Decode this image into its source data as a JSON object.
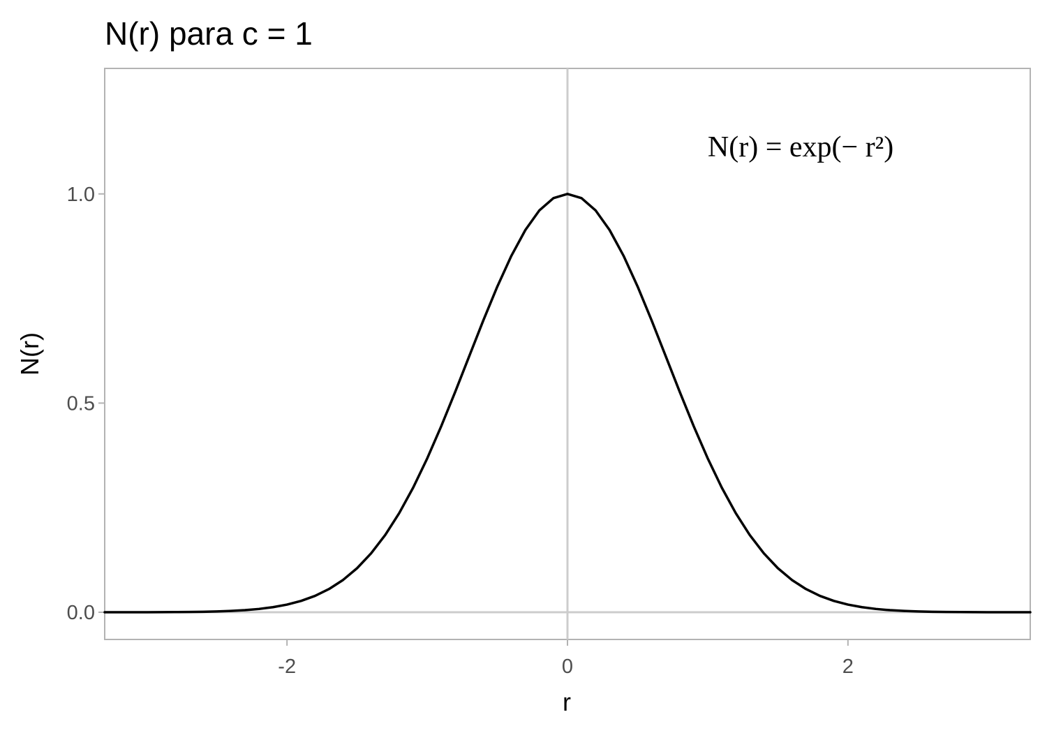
{
  "chart_data": {
    "type": "line",
    "title": "N(r) para c = 1",
    "xlabel": "r",
    "ylabel": "N(r)",
    "xlim": [
      -3.3,
      3.3
    ],
    "ylim": [
      -0.065,
      1.3
    ],
    "x_ticks": [
      {
        "value": -2,
        "label": "-2"
      },
      {
        "value": 0,
        "label": "0"
      },
      {
        "value": 2,
        "label": "2"
      }
    ],
    "y_ticks": [
      {
        "value": 0.0,
        "label": "0.0"
      },
      {
        "value": 0.5,
        "label": "0.5"
      },
      {
        "value": 1.0,
        "label": "1.0"
      }
    ],
    "reference_lines": {
      "vertical_x": 0,
      "horizontal_y": 0
    },
    "grid": false,
    "legend": "none",
    "colors": {
      "curve": "#000000",
      "reference_lines": "#cccccc",
      "panel_border": "#b3b3b3",
      "tick_text": "#4d4d4d"
    },
    "annotation": {
      "x": 1.0,
      "y": 1.09,
      "text": "N(r) = exp(− r²)"
    },
    "series": [
      {
        "x": [
          -3.3,
          -3.2,
          -3.1,
          -3.0,
          -2.9,
          -2.8,
          -2.7,
          -2.6,
          -2.5,
          -2.4,
          -2.3,
          -2.2,
          -2.1,
          -2.0,
          -1.9,
          -1.8,
          -1.7,
          -1.6,
          -1.5,
          -1.4,
          -1.3,
          -1.2,
          -1.1,
          -1.0,
          -0.9,
          -0.8,
          -0.7,
          -0.6,
          -0.5,
          -0.4,
          -0.3,
          -0.2,
          -0.1,
          0.0,
          0.1,
          0.2,
          0.3,
          0.4,
          0.5,
          0.6,
          0.7,
          0.8,
          0.9,
          1.0,
          1.1,
          1.2,
          1.3,
          1.4,
          1.5,
          1.6,
          1.7,
          1.8,
          1.9,
          2.0,
          2.1,
          2.2,
          2.3,
          2.4,
          2.5,
          2.6,
          2.7,
          2.8,
          2.9,
          3.0,
          3.1,
          3.2,
          3.3
        ],
        "y": [
          0.0,
          0.0,
          0.0001,
          0.0001,
          0.0002,
          0.0004,
          0.0007,
          0.0012,
          0.0019,
          0.0032,
          0.005,
          0.0079,
          0.0122,
          0.0183,
          0.0271,
          0.0392,
          0.0556,
          0.0773,
          0.1054,
          0.1409,
          0.1845,
          0.2369,
          0.2982,
          0.3679,
          0.4449,
          0.5273,
          0.6126,
          0.6977,
          0.7788,
          0.8521,
          0.9139,
          0.9608,
          0.99,
          1.0,
          0.99,
          0.9608,
          0.9139,
          0.8521,
          0.7788,
          0.6977,
          0.6126,
          0.5273,
          0.4449,
          0.3679,
          0.2982,
          0.2369,
          0.1845,
          0.1409,
          0.1054,
          0.0773,
          0.0556,
          0.0392,
          0.0271,
          0.0183,
          0.0122,
          0.0079,
          0.005,
          0.0032,
          0.0019,
          0.0012,
          0.0007,
          0.0004,
          0.0002,
          0.0001,
          0.0001,
          0.0,
          0.0
        ]
      }
    ]
  }
}
